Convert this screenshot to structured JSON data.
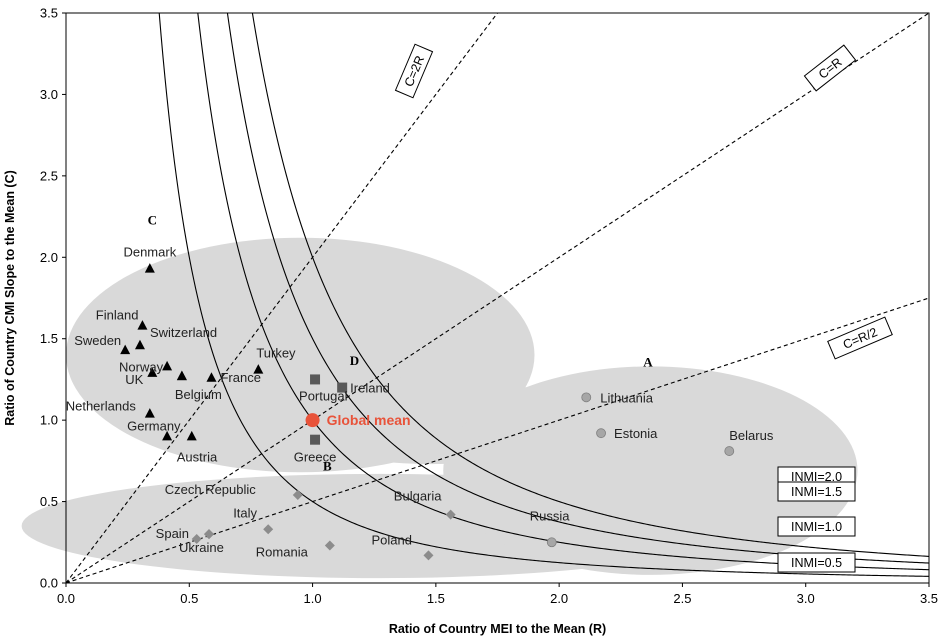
{
  "chart_data": {
    "type": "scatter",
    "xlabel": "Ratio of Country MEI to the Mean (R)",
    "ylabel": "Ratio of Country CMI Slope to the Mean (C)",
    "xlim": [
      0,
      3.5
    ],
    "ylim": [
      0,
      3.5
    ],
    "x_ticks": [
      "0.0",
      "0.5",
      "1.0",
      "1.5",
      "2.0",
      "2.5",
      "3.0",
      "3.5"
    ],
    "y_ticks": [
      "0.0",
      "0.5",
      "1.0",
      "1.5",
      "2.0",
      "2.5",
      "3.0",
      "3.5"
    ],
    "grid": false,
    "colors": {
      "group_C": "#000000",
      "group_D": "#595959",
      "group_B": "#8c8c8c",
      "group_A": "#a6a6a6",
      "global_mean": "#e8533a",
      "ellipse": "#d9d9d9"
    },
    "groups": [
      {
        "letter": "C",
        "marker": "triangle",
        "center": [
          0.95,
          1.4
        ],
        "radii": [
          0.95,
          0.72
        ],
        "letter_pos": [
          0.35,
          2.2
        ],
        "points": [
          {
            "label": "Denmark",
            "x": 0.34,
            "y": 1.93
          },
          {
            "label": "Finland",
            "x": 0.31,
            "y": 1.58
          },
          {
            "label": "Switzerland",
            "x": 0.3,
            "y": 1.46
          },
          {
            "label": "Sweden",
            "x": 0.24,
            "y": 1.43
          },
          {
            "label": "Norway",
            "x": 0.41,
            "y": 1.33
          },
          {
            "label": "Turkey",
            "x": 0.78,
            "y": 1.31
          },
          {
            "label": "UK",
            "x": 0.35,
            "y": 1.29
          },
          {
            "label": "France",
            "x": 0.59,
            "y": 1.26
          },
          {
            "label": "",
            "x": 0.47,
            "y": 1.27
          },
          {
            "label": "Belgium",
            "x": 0.47,
            "y": 1.27
          },
          {
            "label": "Netherlands",
            "x": 0.34,
            "y": 1.04
          },
          {
            "label": "Germany",
            "x": 0.41,
            "y": 0.9
          },
          {
            "label": "Austria",
            "x": 0.51,
            "y": 0.9
          }
        ]
      },
      {
        "letter": "D",
        "marker": "square",
        "center": [
          1.48,
          1.0
        ],
        "radii": [
          0.58,
          0.27
        ],
        "letter_pos": [
          1.17,
          1.34
        ],
        "points": [
          {
            "label": "Portugal",
            "x": 1.01,
            "y": 1.25
          },
          {
            "label": "Ireland",
            "x": 1.12,
            "y": 1.2
          },
          {
            "label": "Greece",
            "x": 1.01,
            "y": 0.88
          }
        ]
      },
      {
        "letter": "B",
        "marker": "diamond",
        "center": [
          1.27,
          0.35
        ],
        "radii": [
          1.45,
          0.32
        ],
        "letter_pos": [
          1.06,
          0.69
        ],
        "points": [
          {
            "label": "Czech Republic",
            "x": 0.94,
            "y": 0.54
          },
          {
            "label": "Bulgaria",
            "x": 1.56,
            "y": 0.42
          },
          {
            "label": "Italy",
            "x": 0.82,
            "y": 0.33
          },
          {
            "label": "Spain",
            "x": 0.53,
            "y": 0.27
          },
          {
            "label": "",
            "x": 0.58,
            "y": 0.3
          },
          {
            "label": "Ukraine",
            "x": 0.58,
            "y": 0.3
          },
          {
            "label": "Romania",
            "x": 1.07,
            "y": 0.23
          },
          {
            "label": "Poland",
            "x": 1.47,
            "y": 0.17
          }
        ]
      },
      {
        "letter": "A",
        "marker": "circle",
        "center": [
          2.37,
          0.69
        ],
        "radii": [
          0.84,
          0.64
        ],
        "letter_pos": [
          2.36,
          1.33
        ],
        "points": [
          {
            "label": "Lithuania",
            "x": 2.11,
            "y": 1.14
          },
          {
            "label": "Estonia",
            "x": 2.17,
            "y": 0.92
          },
          {
            "label": "Belarus",
            "x": 2.69,
            "y": 0.81
          },
          {
            "label": "Russia",
            "x": 1.97,
            "y": 0.25
          }
        ]
      }
    ],
    "global_mean": {
      "label": "Global mean",
      "x": 1.0,
      "y": 1.0
    },
    "inmi_curves": [
      {
        "k": 2.0,
        "label": "INMI=2.0"
      },
      {
        "k": 1.5,
        "label": "INMI=1.5"
      },
      {
        "k": 1.0,
        "label": "INMI=1.0"
      },
      {
        "k": 0.5,
        "label": "INMI=0.5"
      }
    ],
    "reference_lines": [
      {
        "slope": 2.0,
        "label": "C=2R"
      },
      {
        "slope": 1.0,
        "label": "C=R"
      },
      {
        "slope": 0.5,
        "label": "C=R/2"
      }
    ]
  }
}
